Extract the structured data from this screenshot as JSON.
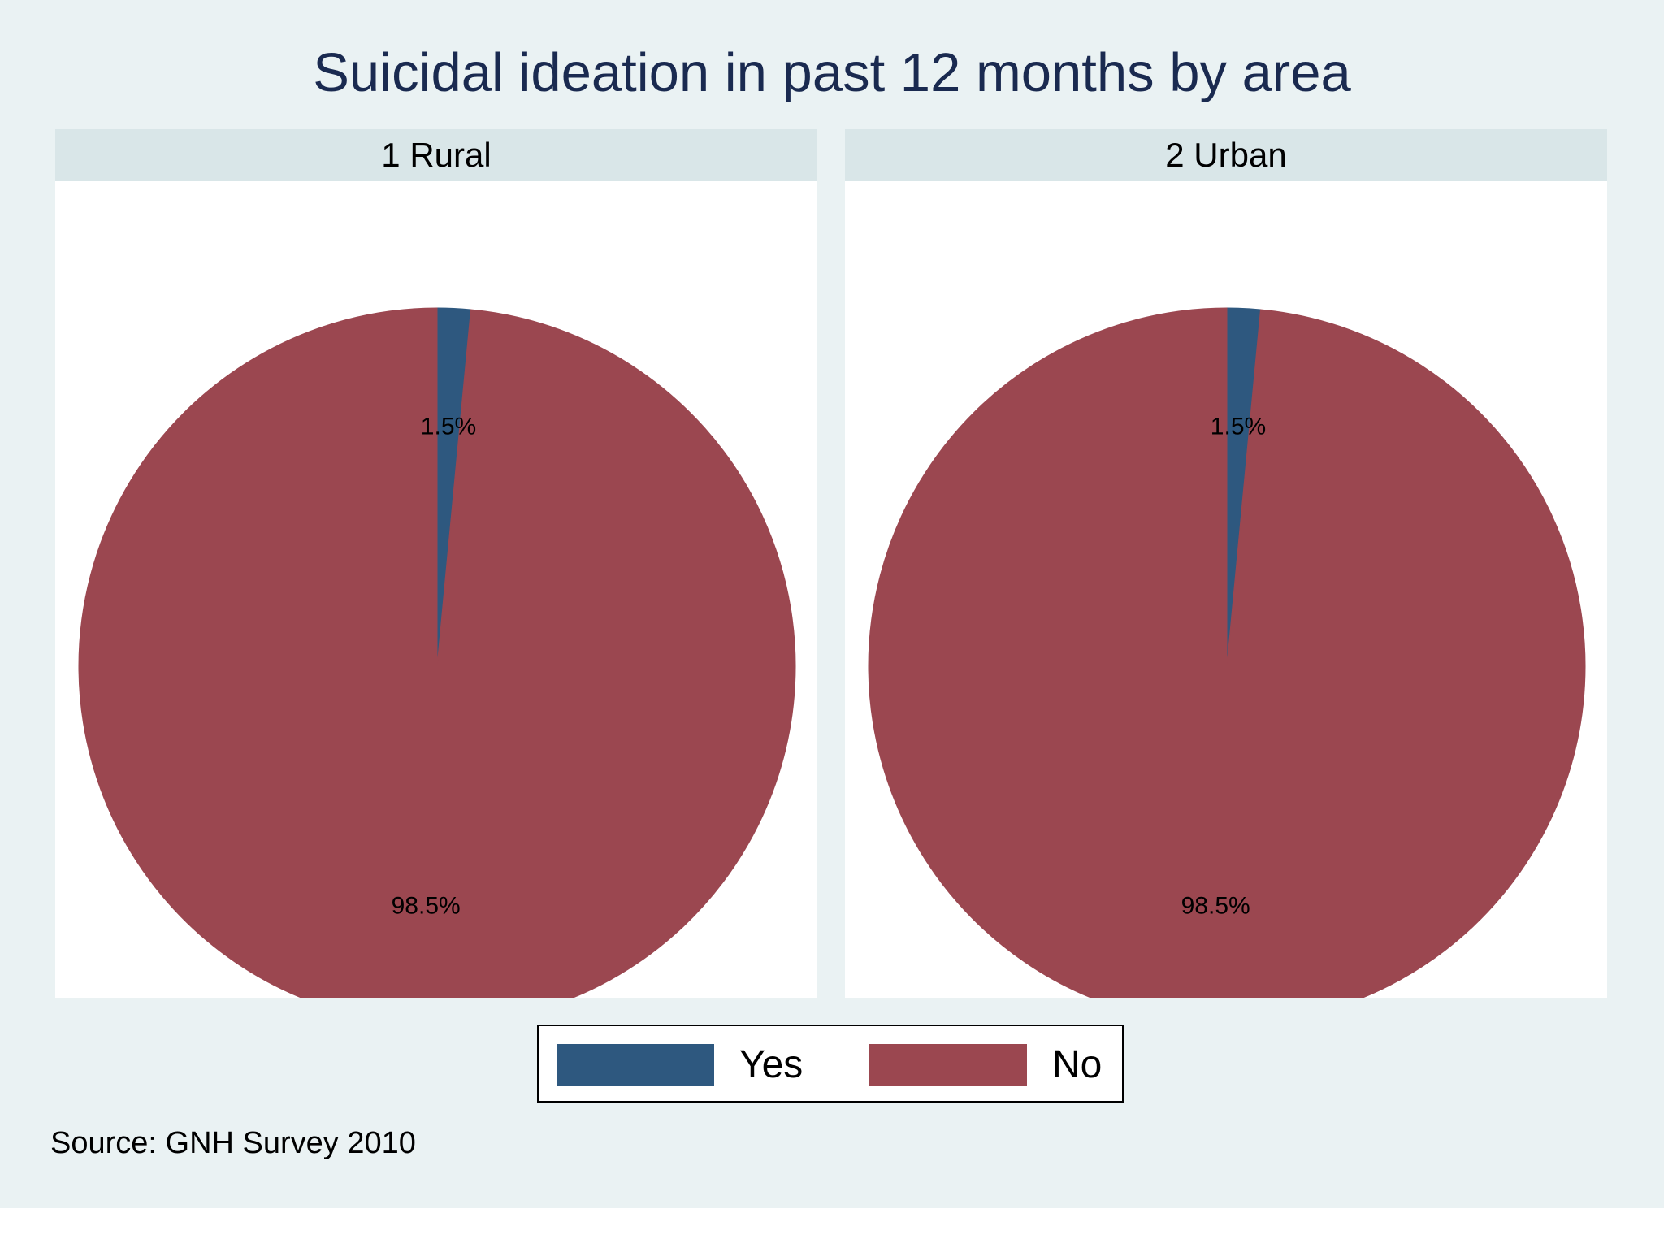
{
  "chart_data": {
    "type": "pie",
    "title": "Suicidal ideation in past 12 months by area",
    "categories": [
      "Yes",
      "No"
    ],
    "colors": {
      "Yes": "#2e587f",
      "No": "#9b4750"
    },
    "panels": [
      {
        "name": "1 Rural",
        "values": [
          1.5,
          98.5
        ],
        "labels": [
          "1.5%",
          "98.5%"
        ]
      },
      {
        "name": "2 Urban",
        "values": [
          1.5,
          98.5
        ],
        "labels": [
          "1.5%",
          "98.5%"
        ]
      }
    ],
    "legend": {
      "placement": "bottom",
      "entries": [
        "Yes",
        "No"
      ]
    },
    "note": "Source: GNH Survey 2010"
  }
}
